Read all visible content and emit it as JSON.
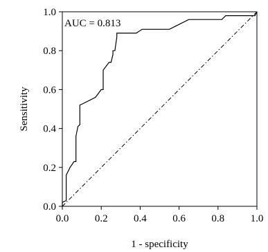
{
  "chart_data": {
    "type": "line",
    "title": "",
    "xlabel": "1 - specificity",
    "ylabel": "Sensitivity",
    "xlim": [
      0,
      1
    ],
    "ylim": [
      0,
      1
    ],
    "grid": false,
    "annotation": "AUC = 0.813",
    "x_ticks": [
      "0.0",
      "0.2",
      "0.4",
      "0.6",
      "0.8",
      "1.0"
    ],
    "y_ticks": [
      "0.0",
      "0.2",
      "0.4",
      "0.6",
      "0.8",
      "1.0"
    ],
    "series": [
      {
        "style": "solid",
        "color": "#000000",
        "x": [
          0.0,
          0.0,
          0.02,
          0.02,
          0.04,
          0.06,
          0.07,
          0.07,
          0.08,
          0.09,
          0.09,
          0.11,
          0.17,
          0.2,
          0.21,
          0.21,
          0.24,
          0.25,
          0.26,
          0.26,
          0.27,
          0.28,
          0.28,
          0.38,
          0.41,
          0.41,
          0.55,
          0.65,
          0.66,
          0.82,
          0.84,
          0.99,
          1.0
        ],
        "y": [
          0.0,
          0.02,
          0.03,
          0.16,
          0.2,
          0.23,
          0.23,
          0.36,
          0.41,
          0.42,
          0.52,
          0.53,
          0.56,
          0.6,
          0.6,
          0.7,
          0.74,
          0.74,
          0.78,
          0.8,
          0.8,
          0.87,
          0.89,
          0.89,
          0.91,
          0.91,
          0.91,
          0.96,
          0.96,
          0.96,
          0.98,
          0.98,
          1.0
        ]
      },
      {
        "style": "dash-dot",
        "color": "#000000",
        "x": [
          0,
          1
        ],
        "y": [
          0,
          1
        ]
      }
    ]
  }
}
